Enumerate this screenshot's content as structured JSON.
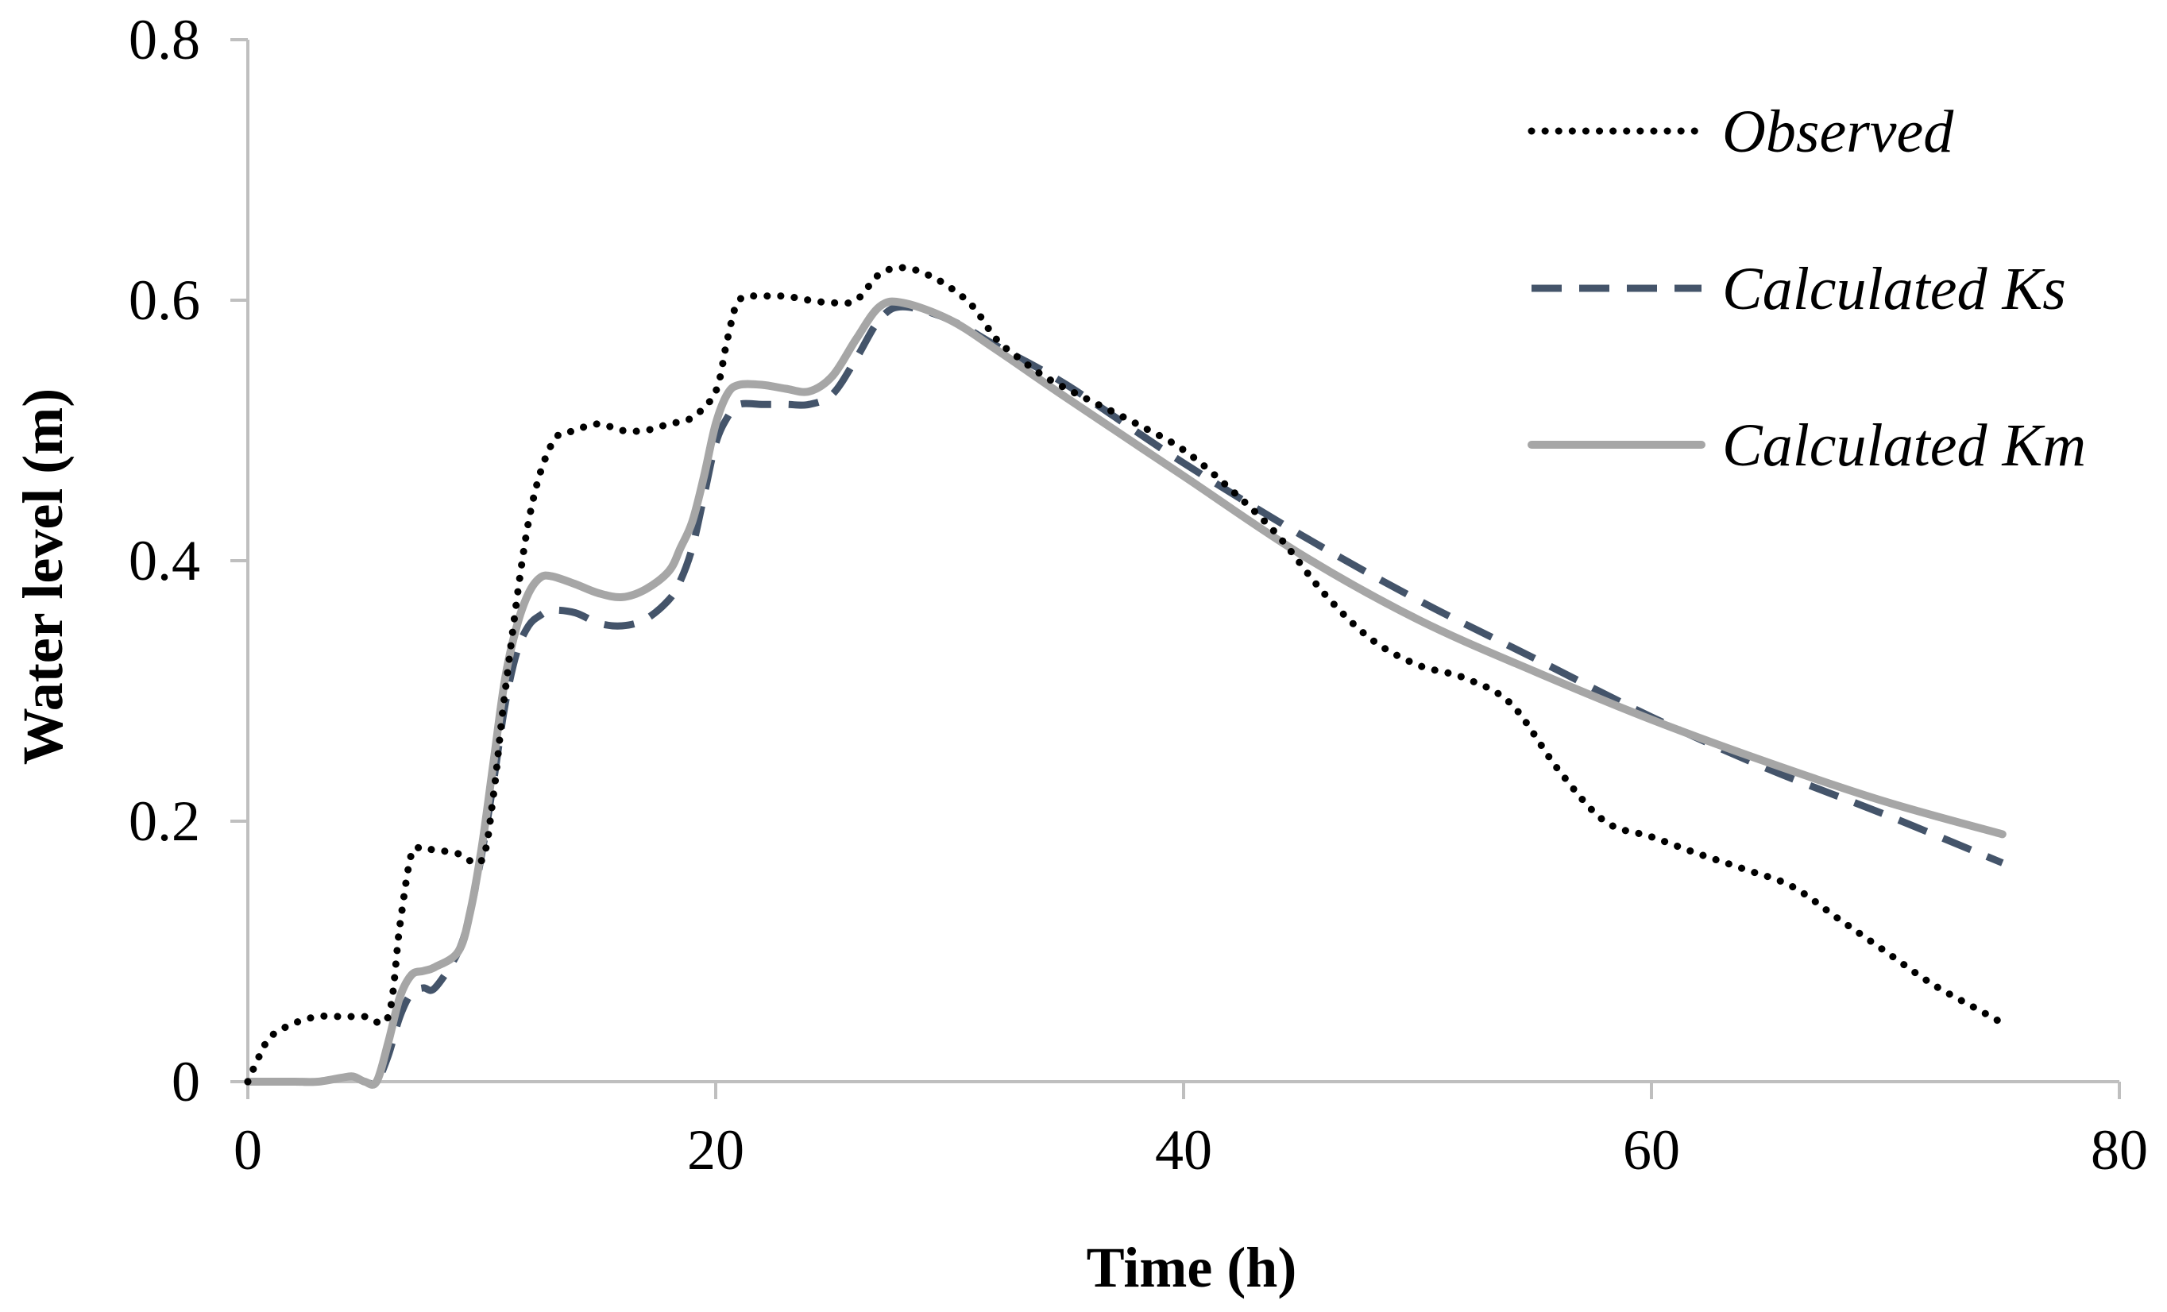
{
  "chart_data": {
    "type": "line",
    "title": "",
    "xlabel": "Time (h)",
    "ylabel": "Water level (m)",
    "xlim": [
      0,
      80
    ],
    "ylim": [
      0,
      0.8
    ],
    "xticks": [
      0,
      20,
      40,
      60,
      80
    ],
    "xtick_labels": [
      "0",
      "20",
      "40",
      "60",
      "80"
    ],
    "yticks": [
      0,
      0.2,
      0.4,
      0.6,
      0.8
    ],
    "ytick_labels": [
      "0",
      "0.2",
      "0.4",
      "0.6",
      "0.8"
    ],
    "grid": false,
    "legend_position": "top-right",
    "series": [
      {
        "name": "Observed",
        "style": "dotted",
        "color": "#000000",
        "x": [
          0,
          0.5,
          1,
          2,
          3,
          4,
          5,
          6,
          6.5,
          7,
          7.5,
          8,
          9,
          10,
          10.5,
          11,
          12,
          13,
          14,
          15,
          16,
          17,
          18,
          19,
          20,
          20.5,
          21,
          22,
          23,
          24,
          25,
          26,
          27,
          28,
          29,
          30,
          31,
          32,
          33,
          34,
          35,
          36,
          38,
          40,
          42,
          44,
          46,
          48,
          50,
          52,
          54,
          56,
          58,
          60,
          62,
          64,
          66,
          68,
          70,
          72,
          74,
          75
        ],
        "values": [
          0.0,
          0.02,
          0.035,
          0.045,
          0.05,
          0.05,
          0.05,
          0.05,
          0.12,
          0.175,
          0.178,
          0.178,
          0.175,
          0.17,
          0.22,
          0.3,
          0.43,
          0.49,
          0.5,
          0.505,
          0.5,
          0.5,
          0.505,
          0.51,
          0.53,
          0.57,
          0.6,
          0.603,
          0.603,
          0.6,
          0.598,
          0.6,
          0.62,
          0.625,
          0.62,
          0.61,
          0.595,
          0.57,
          0.555,
          0.542,
          0.532,
          0.523,
          0.505,
          0.485,
          0.455,
          0.42,
          0.375,
          0.34,
          0.32,
          0.31,
          0.29,
          0.24,
          0.2,
          0.188,
          0.175,
          0.163,
          0.15,
          0.125,
          0.1,
          0.075,
          0.055,
          0.045
        ]
      },
      {
        "name": "Calculated Ks",
        "style": "dashed",
        "color": "#44546A",
        "x": [
          0,
          1,
          2,
          3,
          4,
          4.5,
          5,
          5.5,
          6,
          6.5,
          7,
          7.5,
          8,
          9,
          9.5,
          10,
          10.5,
          11,
          11.5,
          12,
          12.5,
          13,
          14,
          15,
          16,
          17,
          18,
          18.5,
          19,
          19.5,
          20,
          20.5,
          21,
          22,
          23,
          24,
          25,
          26,
          27,
          28,
          30,
          32,
          35,
          40,
          45,
          50,
          55,
          60,
          65,
          70,
          75
        ],
        "values": [
          0.0,
          0.0,
          0.0,
          0.0,
          0.003,
          0.004,
          0.0,
          0.0,
          0.02,
          0.05,
          0.068,
          0.072,
          0.072,
          0.1,
          0.13,
          0.175,
          0.23,
          0.29,
          0.33,
          0.35,
          0.358,
          0.362,
          0.36,
          0.352,
          0.35,
          0.355,
          0.37,
          0.385,
          0.41,
          0.45,
          0.49,
          0.51,
          0.52,
          0.52,
          0.52,
          0.52,
          0.528,
          0.555,
          0.585,
          0.595,
          0.585,
          0.565,
          0.535,
          0.475,
          0.42,
          0.37,
          0.325,
          0.28,
          0.24,
          0.205,
          0.168
        ]
      },
      {
        "name": "Calculated Km",
        "style": "solid",
        "color": "#A6A6A6",
        "x": [
          0,
          1,
          2,
          3,
          4,
          4.5,
          5,
          5.5,
          6,
          6.5,
          7,
          7.5,
          8,
          9,
          9.5,
          10,
          10.5,
          11,
          11.5,
          12,
          12.5,
          13,
          14,
          15,
          16,
          17,
          18,
          18.5,
          19,
          19.5,
          20,
          20.5,
          21,
          22,
          23,
          24,
          25,
          26,
          27,
          28,
          30,
          32,
          35,
          40,
          45,
          50,
          55,
          60,
          65,
          70,
          75
        ],
        "values": [
          0.0,
          0.0,
          0.0,
          0.0,
          0.003,
          0.004,
          0.0,
          0.0,
          0.03,
          0.065,
          0.082,
          0.085,
          0.088,
          0.1,
          0.13,
          0.18,
          0.245,
          0.31,
          0.35,
          0.375,
          0.387,
          0.388,
          0.382,
          0.375,
          0.372,
          0.378,
          0.392,
          0.41,
          0.43,
          0.465,
          0.505,
          0.528,
          0.535,
          0.535,
          0.532,
          0.53,
          0.542,
          0.57,
          0.595,
          0.598,
          0.585,
          0.562,
          0.525,
          0.465,
          0.405,
          0.355,
          0.315,
          0.278,
          0.245,
          0.215,
          0.19
        ]
      }
    ]
  }
}
